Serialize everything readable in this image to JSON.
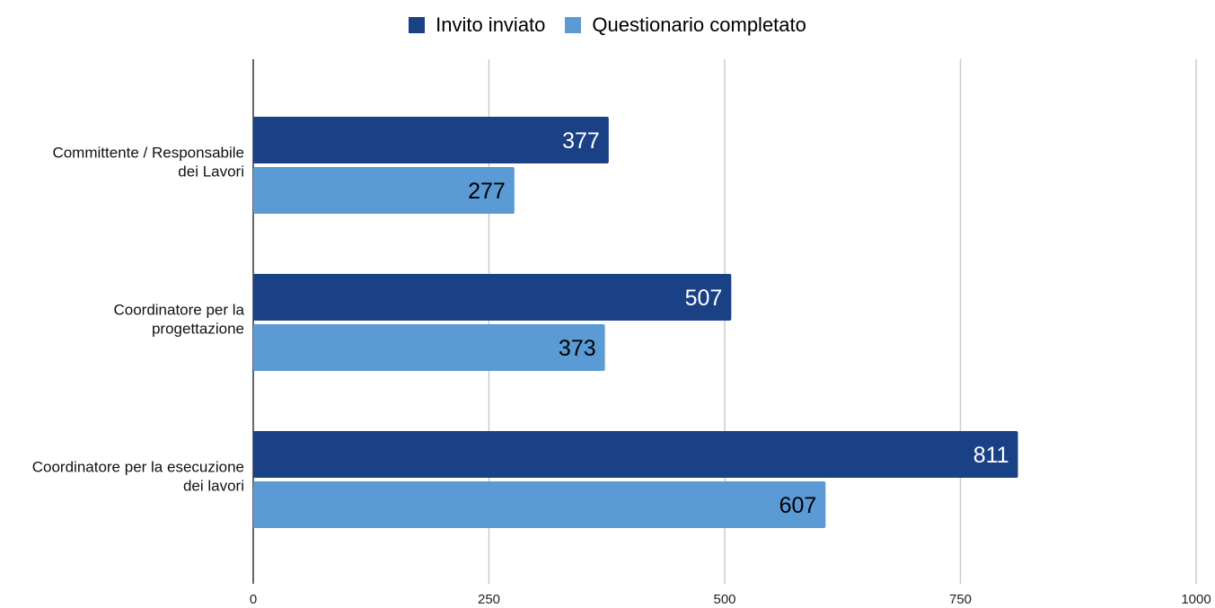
{
  "chart_data": {
    "type": "bar",
    "orientation": "horizontal",
    "categories": [
      [
        "Committente / Responsabile",
        "dei Lavori"
      ],
      [
        "Coordinatore per la",
        "progettazione"
      ],
      [
        "Coordinatore per la esecuzione",
        "dei lavori"
      ]
    ],
    "series": [
      {
        "name": "Invito inviato",
        "values": [
          377,
          507,
          811
        ],
        "color": "#1a4086",
        "label_color": "#ffffff"
      },
      {
        "name": "Questionario completato",
        "values": [
          277,
          373,
          607
        ],
        "color": "#5b9bd5",
        "label_color": "#000000"
      }
    ],
    "xlim": [
      0,
      1000
    ],
    "x_ticks": [
      0,
      250,
      500,
      750,
      1000
    ],
    "grid": true,
    "legend_position": "top-center",
    "data_labels": true
  }
}
